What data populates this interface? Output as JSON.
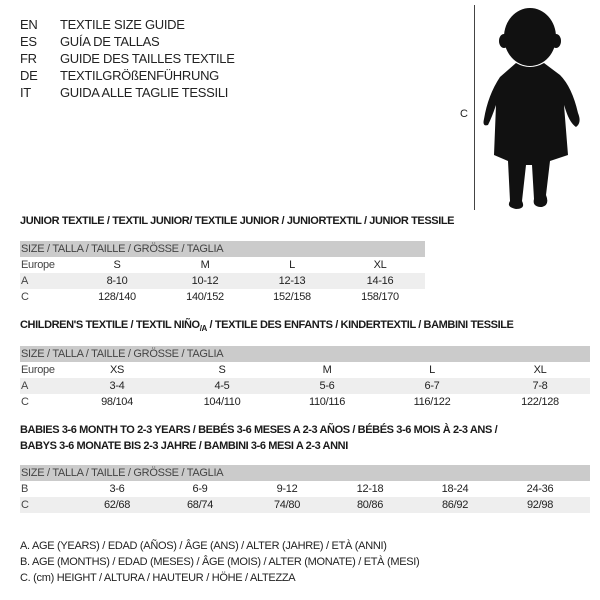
{
  "languages": [
    {
      "code": "EN",
      "title": "TEXTILE SIZE GUIDE"
    },
    {
      "code": "ES",
      "title": "GUÍA DE TALLAS"
    },
    {
      "code": "FR",
      "title": "GUIDE DES TAILLES TEXTILE"
    },
    {
      "code": "DE",
      "title": "TEXTILGRÖßENFÜHRUNG"
    },
    {
      "code": "IT",
      "title": "GUIDA ALLE TAGLIE TESSILI"
    }
  ],
  "figure": {
    "label": "C",
    "icon": "child-silhouette"
  },
  "junior": {
    "title": "JUNIOR TEXTILE / TEXTIL JUNIOR/ TEXTILE JUNIOR / JUNIORTEXTIL / JUNIOR TESSILE",
    "header": "SIZE / TALLA / TAILLE / GRÖSSE / TAGLIA",
    "rows": [
      {
        "label": "Europe",
        "cells": [
          "S",
          "M",
          "L",
          "XL"
        ]
      },
      {
        "label": "A",
        "cells": [
          "8-10",
          "10-12",
          "12-13",
          "14-16"
        ]
      },
      {
        "label": "C",
        "cells": [
          "128/140",
          "140/152",
          "152/158",
          "158/170"
        ]
      }
    ]
  },
  "children": {
    "title_pre": "CHILDREN'S TEXTILE / TEXTIL NIÑO",
    "title_sub": "/A",
    "title_post": " / TEXTILE DES ENFANTS / KINDERTEXTIL / BAMBINI TESSILE",
    "header": "SIZE / TALLA / TAILLE / GRÖSSE / TAGLIA",
    "rows": [
      {
        "label": "Europe",
        "cells": [
          "XS",
          "S",
          "M",
          "L",
          "XL"
        ]
      },
      {
        "label": "A",
        "cells": [
          "3-4",
          "4-5",
          "5-6",
          "6-7",
          "7-8"
        ]
      },
      {
        "label": "C",
        "cells": [
          "98/104",
          "104/110",
          "110/116",
          "116/122",
          "122/128"
        ]
      }
    ]
  },
  "babies": {
    "title_line1": "BABIES 3-6 MONTH TO 2-3 YEARS / BEBÉS 3-6 MESES A 2-3 AÑOS / BÉBÉS 3-6 MOIS À 2-3 ANS /",
    "title_line2": "BABYS 3-6 MONATE BIS 2-3 JAHRE / BAMBINI 3-6 MESI A 2-3 ANNI",
    "header": "SIZE / TALLA / TAILLE / GRÖSSE / TAGLIA",
    "rows": [
      {
        "label": "B",
        "cells": [
          "3-6",
          "6-9",
          "9-12",
          "12-18",
          "18-24",
          "24-36"
        ]
      },
      {
        "label": "C",
        "cells": [
          "62/68",
          "68/74",
          "74/80",
          "80/86",
          "86/92",
          "92/98"
        ]
      }
    ]
  },
  "legend": [
    "A. AGE (YEARS) / EDAD (AÑOS) / ÂGE (ANS) / ALTER (JAHRE) / ETÀ (ANNI)",
    "B. AGE (MONTHS) / EDAD (MESES) / ÂGE (MOIS) / ALTER (MONATE) / ETÀ (MESI)",
    "C. (cm) HEIGHT / ALTURA / HAUTEUR / HÖHE / ALTEZZA"
  ]
}
